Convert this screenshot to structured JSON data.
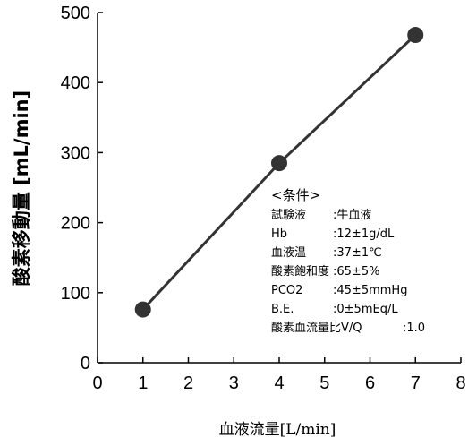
{
  "chart_data": {
    "type": "line",
    "title": "",
    "xlabel": "血液流量[L/min]",
    "ylabel": "酸素移動量 [mL/min]",
    "xlim": [
      0,
      8
    ],
    "ylim": [
      0,
      500
    ],
    "x_ticks": [
      "0",
      "1",
      "2",
      "3",
      "4",
      "5",
      "6",
      "7",
      "8"
    ],
    "y_ticks": [
      "0",
      "100",
      "200",
      "300",
      "400",
      "500"
    ],
    "grid": false,
    "series": [
      {
        "x": [
          1,
          4,
          7
        ],
        "y": [
          76,
          285,
          468
        ],
        "color": "#333333"
      }
    ],
    "annotation": {
      "heading": "<条件>",
      "rows": [
        {
          "label": "試験液",
          "value": ":牛血液"
        },
        {
          "label": "Hb",
          "value": ":12±1g/dL"
        },
        {
          "label": "血液温",
          "value": ":37±1℃"
        },
        {
          "label": "酸素飽和度",
          "value": ":65±5%"
        },
        {
          "label": "PCO2",
          "value": ":45±5mmHg"
        },
        {
          "label": "B.E.",
          "value": ":0±5mEq/L"
        },
        {
          "label": "酸素血流量比V/Q",
          "value": ":1.0"
        }
      ]
    }
  }
}
